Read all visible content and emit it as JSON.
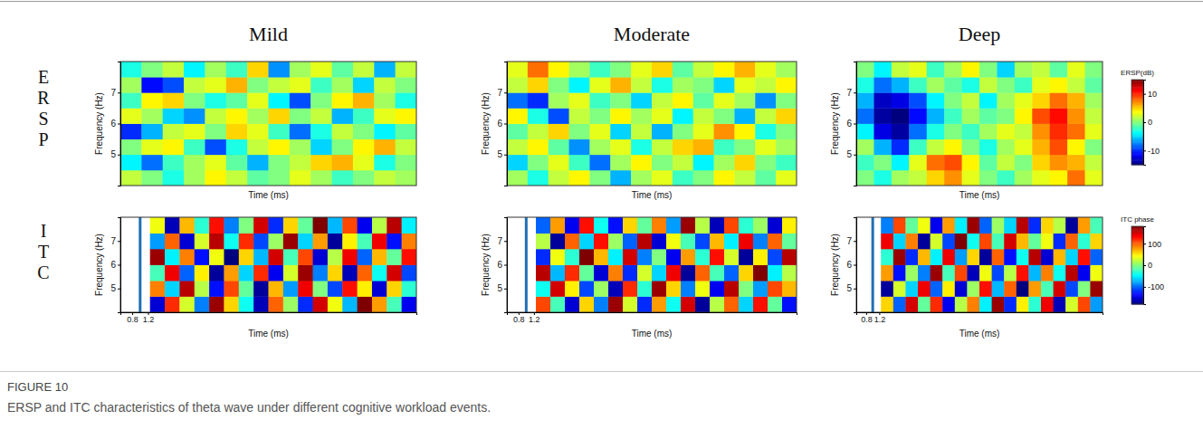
{
  "figure": {
    "label": "FIGURE 10",
    "caption": "ERSP and ITC characteristics of theta wave under different cognitive workload events.",
    "row_labels": [
      "ERSP",
      "ITC"
    ],
    "colorbars": [
      {
        "label": "ERSP(dB)",
        "range": [
          -15,
          15
        ],
        "ticks": [
          10,
          0,
          -10
        ]
      },
      {
        "label": "ITC phase",
        "range": [
          -180,
          180
        ],
        "ticks": [
          100,
          0,
          -100
        ]
      }
    ]
  },
  "chart_data": [
    {
      "type": "heatmap",
      "title": "Mild",
      "x_label": "Time (ms)",
      "y_label": "Frequency (Hz)",
      "ylim": [
        4,
        8
      ],
      "yticks": [
        5,
        6,
        7
      ],
      "y_edges": [
        4,
        4.5,
        5,
        5.5,
        6,
        6.5,
        7,
        7.5,
        8
      ],
      "cells": [
        [
          2,
          0,
          -3,
          1,
          4,
          2,
          -1,
          0,
          3,
          1,
          -2,
          0,
          2,
          1
        ],
        [
          -4,
          -8,
          -2,
          1,
          3,
          -1,
          -6,
          0,
          2,
          5,
          6,
          3,
          -3,
          0
        ],
        [
          0,
          3,
          4,
          -2,
          -9,
          -3,
          2,
          4,
          1,
          -5,
          0,
          4,
          6,
          2
        ],
        [
          -10,
          -6,
          2,
          3,
          0,
          5,
          3,
          -2,
          -8,
          -3,
          2,
          0,
          -4,
          -1
        ],
        [
          3,
          1,
          -5,
          -7,
          2,
          4,
          1,
          5,
          0,
          2,
          -6,
          -2,
          3,
          4
        ],
        [
          -2,
          4,
          5,
          0,
          -3,
          -1,
          3,
          -4,
          -9,
          0,
          4,
          6,
          1,
          -3
        ],
        [
          1,
          -11,
          -9,
          2,
          3,
          6,
          0,
          2,
          3,
          -2,
          1,
          -5,
          2,
          0
        ],
        [
          -3,
          0,
          2,
          -4,
          1,
          -2,
          5,
          -7,
          1,
          3,
          -1,
          2,
          -6,
          2
        ]
      ]
    },
    {
      "type": "heatmap",
      "title": "Moderate",
      "x_label": "Time (ms)",
      "y_label": "Frequency (Hz)",
      "ylim": [
        4,
        8
      ],
      "yticks": [
        5,
        6,
        7
      ],
      "y_edges": [
        4,
        4.5,
        5,
        5.5,
        6,
        6.5,
        7,
        7.5,
        8
      ],
      "cells": [
        [
          1,
          -3,
          2,
          4,
          0,
          -6,
          1,
          3,
          -2,
          0,
          4,
          2,
          -1,
          3
        ],
        [
          -5,
          0,
          3,
          -2,
          -8,
          1,
          4,
          0,
          2,
          -4,
          1,
          5,
          0,
          -2
        ],
        [
          2,
          4,
          -1,
          -7,
          1,
          3,
          -3,
          2,
          5,
          6,
          -2,
          0,
          3,
          1
        ],
        [
          -1,
          2,
          5,
          0,
          3,
          -5,
          2,
          -6,
          0,
          3,
          7,
          4,
          -3,
          0
        ],
        [
          4,
          -3,
          -9,
          2,
          0,
          4,
          1,
          3,
          -4,
          2,
          0,
          -6,
          2,
          5
        ],
        [
          -8,
          -10,
          1,
          3,
          -2,
          0,
          -5,
          2,
          4,
          -1,
          3,
          1,
          -7,
          0
        ],
        [
          2,
          5,
          0,
          -4,
          3,
          6,
          2,
          -3,
          1,
          0,
          -5,
          3,
          2,
          4
        ],
        [
          3,
          8,
          4,
          1,
          -2,
          0,
          3,
          5,
          -1,
          2,
          4,
          6,
          3,
          1
        ]
      ]
    },
    {
      "type": "heatmap",
      "title": "Deep",
      "x_label": "Time (ms)",
      "y_label": "Frequency (Hz)",
      "ylim": [
        4,
        8
      ],
      "yticks": [
        5,
        6,
        7
      ],
      "y_edges": [
        4,
        4.5,
        5,
        5.5,
        6,
        6.5,
        7,
        7.5,
        8
      ],
      "cells": [
        [
          0,
          -3,
          1,
          2,
          5,
          7,
          3,
          0,
          -2,
          1,
          3,
          4,
          8,
          3
        ],
        [
          -2,
          0,
          -4,
          3,
          8,
          9,
          4,
          -1,
          2,
          0,
          5,
          7,
          6,
          2
        ],
        [
          1,
          -6,
          -10,
          -2,
          2,
          4,
          0,
          -3,
          1,
          3,
          6,
          9,
          4,
          0
        ],
        [
          -4,
          -12,
          -14,
          -8,
          -3,
          0,
          -2,
          1,
          3,
          2,
          7,
          10,
          8,
          3
        ],
        [
          -8,
          -14,
          -15,
          -11,
          -6,
          -2,
          1,
          -1,
          0,
          4,
          9,
          11,
          7,
          2
        ],
        [
          -6,
          -13,
          -12,
          -9,
          -4,
          0,
          2,
          -4,
          1,
          3,
          5,
          8,
          6,
          1
        ],
        [
          -3,
          -8,
          -6,
          -2,
          1,
          -1,
          -3,
          2,
          0,
          -2,
          3,
          4,
          2,
          -1
        ],
        [
          0,
          -4,
          2,
          3,
          -2,
          1,
          4,
          0,
          -5,
          1,
          2,
          -1,
          3,
          0
        ]
      ]
    },
    {
      "type": "heatmap",
      "x_label": "Time (ms)",
      "y_label": "Frequency (Hz)",
      "xlim": [
        0.5,
        8
      ],
      "xticks": [
        0.8,
        1.2
      ],
      "event_line": 1.0,
      "x_edges": [
        1.25,
        1.625,
        2,
        2.375,
        2.75,
        3.125,
        3.5,
        3.875,
        4.25,
        4.625,
        5,
        5.375,
        5.75,
        6.125,
        6.5,
        6.875,
        7.25,
        7.625,
        8
      ],
      "ylim": [
        4,
        8
      ],
      "yticks": [
        5,
        6,
        7
      ],
      "y_edges": [
        4,
        4.67,
        5.33,
        6,
        6.67,
        7.33,
        8
      ],
      "cells": [
        [
          -150,
          120,
          30,
          -90,
          170,
          60,
          -40,
          -160,
          100,
          10,
          -120,
          150,
          40,
          -70,
          180,
          80,
          -20,
          -140
        ],
        [
          90,
          -60,
          160,
          20,
          -130,
          110,
          -10,
          -170,
          70,
          -80,
          140,
          0,
          -110,
          130,
          50,
          -150,
          60,
          -30
        ],
        [
          -20,
          140,
          -100,
          50,
          -170,
          80,
          -60,
          120,
          -140,
          30,
          170,
          -90,
          60,
          -160,
          100,
          -40,
          150,
          -110
        ],
        [
          170,
          -50,
          90,
          -130,
          40,
          -180,
          60,
          -70,
          150,
          -20,
          110,
          -150,
          20,
          140,
          -100,
          70,
          -10,
          130
        ],
        [
          -80,
          100,
          -150,
          30,
          160,
          -40,
          120,
          -110,
          10,
          170,
          -60,
          80,
          -170,
          50,
          -20,
          140,
          -130,
          90
        ],
        [
          40,
          -160,
          70,
          -30,
          130,
          -90,
          0,
          150,
          -120,
          60,
          -10,
          180,
          -70,
          110,
          -140,
          20,
          160,
          -50
        ]
      ]
    },
    {
      "type": "heatmap",
      "x_label": "Time (ms)",
      "y_label": "Frequency (Hz)",
      "xlim": [
        0.5,
        8
      ],
      "xticks": [
        0.8,
        1.2
      ],
      "event_line": 1.0,
      "x_edges": [
        1.25,
        1.625,
        2,
        2.375,
        2.75,
        3.125,
        3.5,
        3.875,
        4.25,
        4.625,
        5,
        5.375,
        5.75,
        6.125,
        6.5,
        6.875,
        7.25,
        7.625,
        8
      ],
      "ylim": [
        4,
        8
      ],
      "yticks": [
        5,
        6,
        7
      ],
      "y_edges": [
        4,
        4.67,
        5.33,
        6,
        6.67,
        7.33,
        8
      ],
      "cells": [
        [
          110,
          -20,
          -150,
          60,
          -90,
          170,
          30,
          -120,
          80,
          -40,
          150,
          -170,
          20,
          100,
          -60,
          130,
          -10,
          -130
        ],
        [
          -40,
          150,
          50,
          -110,
          10,
          -160,
          120,
          -30,
          170,
          60,
          -90,
          40,
          -140,
          160,
          0,
          -80,
          110,
          70
        ],
        [
          160,
          -70,
          120,
          -10,
          -150,
          90,
          -120,
          30,
          -60,
          140,
          -170,
          100,
          -20,
          -100,
          60,
          180,
          -50,
          20
        ],
        [
          -120,
          40,
          -30,
          180,
          70,
          -50,
          150,
          -90,
          0,
          -140,
          80,
          -30,
          130,
          30,
          -170,
          50,
          -110,
          160
        ],
        [
          20,
          -170,
          100,
          -60,
          130,
          10,
          -100,
          160,
          -150,
          40,
          -20,
          -110,
          70,
          -50,
          140,
          -90,
          100,
          -10
        ],
        [
          -100,
          80,
          -140,
          130,
          -40,
          -130,
          60,
          -10,
          90,
          -80,
          170,
          20,
          -160,
          110,
          -30,
          10,
          -150,
          50
        ]
      ]
    },
    {
      "type": "heatmap",
      "x_label": "Time (ms)",
      "y_label": "Frequency (Hz)",
      "xlim": [
        0.5,
        8
      ],
      "xticks": [
        0.8,
        1.2
      ],
      "event_line": 1.0,
      "x_edges": [
        1.25,
        1.625,
        2,
        2.375,
        2.75,
        3.125,
        3.5,
        3.875,
        4.25,
        4.625,
        5,
        5.375,
        5.75,
        6.125,
        6.5,
        6.875,
        7.25,
        7.625,
        8
      ],
      "ylim": [
        4,
        8
      ],
      "yticks": [
        5,
        6,
        7
      ],
      "y_edges": [
        4,
        4.67,
        5.33,
        6,
        6.67,
        7.33,
        8
      ],
      "cells": [
        [
          60,
          -100,
          150,
          -10,
          120,
          -140,
          20,
          90,
          -50,
          170,
          -120,
          50,
          -30,
          140,
          -160,
          30,
          110,
          -80
        ],
        [
          -170,
          30,
          -60,
          140,
          -100,
          50,
          -150,
          10,
          130,
          -70,
          100,
          -180,
          80,
          -20,
          150,
          -110,
          0,
          170
        ],
        [
          80,
          -130,
          10,
          -90,
          170,
          -20,
          110,
          -160,
          40,
          -110,
          20,
          130,
          -70,
          90,
          -40,
          160,
          -140,
          40
        ],
        [
          -30,
          170,
          -120,
          70,
          -50,
          140,
          -80,
          60,
          -170,
          100,
          -130,
          -40,
          160,
          -150,
          70,
          -60,
          130,
          -100
        ],
        [
          140,
          -60,
          90,
          -170,
          30,
          -110,
          180,
          -40,
          110,
          -20,
          150,
          70,
          -10,
          40,
          -120,
          100,
          -30,
          60
        ],
        [
          -90,
          110,
          -10,
          40,
          -140,
          80,
          -50,
          170,
          -100,
          10,
          -60,
          160,
          -120,
          60,
          20,
          -170,
          80,
          -20
        ]
      ]
    }
  ]
}
